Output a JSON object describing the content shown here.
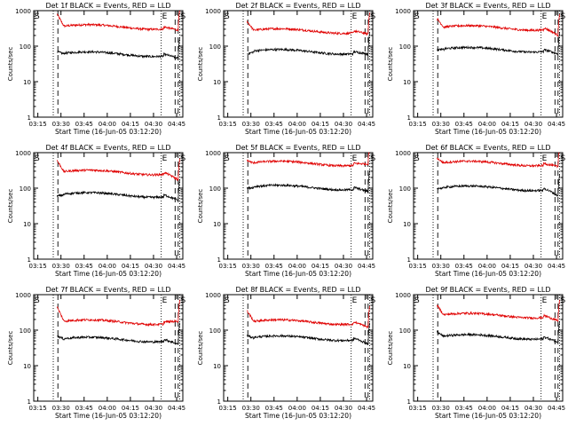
{
  "chart_data": {
    "type": "line",
    "common": {
      "xlabel": "Start Time (16-Jun-05 03:12:20)",
      "ylabel": "Counts/sec",
      "yscale": "log",
      "ylim": [
        1,
        1000
      ],
      "xlim": [
        "03:12:20",
        "04:49:00"
      ],
      "x_ticks": [
        "03:15",
        "03:30",
        "03:45",
        "04:00",
        "04:15",
        "04:30",
        "04:45"
      ],
      "y_ticks": [
        "1",
        "10",
        "100",
        "1000"
      ],
      "series_colors": {
        "events": "#000000",
        "lld": "#e00000"
      },
      "vertical_markers": [
        {
          "time": "03:25",
          "style": "dotted"
        },
        {
          "time": "03:28",
          "style": "dashed"
        },
        {
          "time": "04:35",
          "style": "dotted"
        },
        {
          "time": "04:44",
          "style": "dashed"
        },
        {
          "time": "04:46",
          "style": "dashed"
        },
        {
          "time": "04:47",
          "style": "dotted"
        }
      ],
      "marker_letters": [
        {
          "letter": "S",
          "time": "03:12:20"
        },
        {
          "letter": "E",
          "time": "04:35"
        },
        {
          "letter": "S",
          "time": "04:47"
        }
      ]
    },
    "panels": [
      {
        "title": "Det 1f BLACK = Events, RED = LLD",
        "lld_start": 800,
        "lld_mid": 350,
        "lld_end": 280,
        "ev_start": 70,
        "ev_mid": 60,
        "ev_end": 45
      },
      {
        "title": "Det 2f BLACK = Events, RED = LLD",
        "lld_start": 500,
        "lld_mid": 270,
        "lld_end": 220,
        "ev_start": 60,
        "ev_mid": 70,
        "ev_end": 60
      },
      {
        "title": "Det 3f BLACK = Events, RED = LLD",
        "lld_start": 600,
        "lld_mid": 330,
        "lld_end": 200,
        "ev_start": 80,
        "ev_mid": 80,
        "ev_end": 60
      },
      {
        "title": "Det 4f BLACK = Events, RED = LLD",
        "lld_start": 600,
        "lld_mid": 280,
        "lld_end": 170,
        "ev_start": 60,
        "ev_mid": 65,
        "ev_end": 45
      },
      {
        "title": "Det 5f BLACK = Events, RED = LLD",
        "lld_start": 600,
        "lld_mid": 500,
        "lld_end": 480,
        "ev_start": 100,
        "ev_mid": 105,
        "ev_end": 80
      },
      {
        "title": "Det 6f BLACK = Events, RED = LLD",
        "lld_start": 700,
        "lld_mid": 500,
        "lld_end": 400,
        "ev_start": 100,
        "ev_mid": 100,
        "ev_end": 60
      },
      {
        "title": "Det 7f BLACK = Events, RED = LLD",
        "lld_start": 450,
        "lld_mid": 170,
        "lld_end": 180,
        "ev_start": 70,
        "ev_mid": 55,
        "ev_end": 40
      },
      {
        "title": "Det 8f BLACK = Events, RED = LLD",
        "lld_start": 350,
        "lld_mid": 170,
        "lld_end": 120,
        "ev_start": 70,
        "ev_mid": 60,
        "ev_end": 40
      },
      {
        "title": "Det 9f BLACK = Events, RED = LLD",
        "lld_start": 500,
        "lld_mid": 260,
        "lld_end": 180,
        "ev_start": 90,
        "ev_mid": 65,
        "ev_end": 45
      }
    ]
  }
}
